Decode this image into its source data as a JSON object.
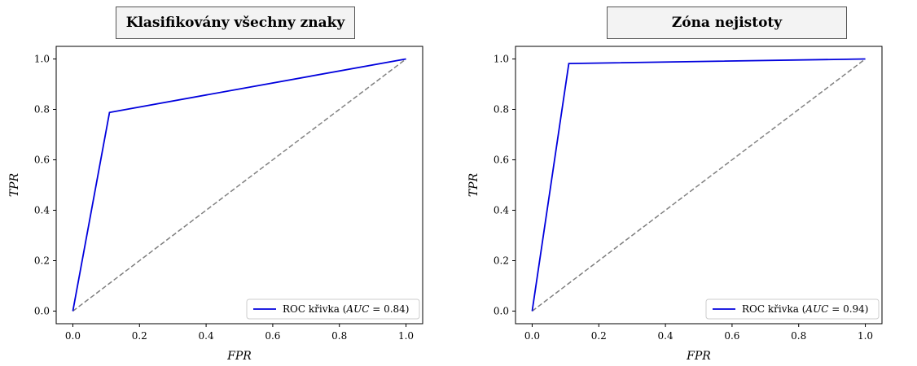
{
  "colors": {
    "roc": "#0000dd",
    "diagonal": "#808080",
    "axis": "#000000",
    "title_bg": "#f3f3f3"
  },
  "chart_data": [
    {
      "type": "line",
      "title": "Klasifikovány všechny znaky",
      "xlabel": "FPR",
      "ylabel": "TPR",
      "xlim": [
        -0.05,
        1.05
      ],
      "ylim": [
        -0.05,
        1.05
      ],
      "xticks": [
        "0.0",
        "0.2",
        "0.4",
        "0.6",
        "0.8",
        "1.0"
      ],
      "yticks": [
        "0.0",
        "0.2",
        "0.4",
        "0.6",
        "0.8",
        "1.0"
      ],
      "grid": false,
      "legend_position": "lower-right",
      "series": [
        {
          "name": "ROC křivka",
          "auc_label": "AUC",
          "auc": "0.84",
          "x": [
            0.0,
            0.11,
            1.0
          ],
          "y": [
            0.0,
            0.788,
            1.0
          ]
        }
      ],
      "diagonal": {
        "x": [
          0.0,
          1.0
        ],
        "y": [
          0.0,
          1.0
        ]
      }
    },
    {
      "type": "line",
      "title": "Zóna nejistoty",
      "xlabel": "FPR",
      "ylabel": "TPR",
      "xlim": [
        -0.05,
        1.05
      ],
      "ylim": [
        -0.05,
        1.05
      ],
      "xticks": [
        "0.0",
        "0.2",
        "0.4",
        "0.6",
        "0.8",
        "1.0"
      ],
      "yticks": [
        "0.0",
        "0.2",
        "0.4",
        "0.6",
        "0.8",
        "1.0"
      ],
      "grid": false,
      "legend_position": "lower-right",
      "series": [
        {
          "name": "ROC křivka",
          "auc_label": "AUC",
          "auc": "0.94",
          "x": [
            0.0,
            0.11,
            1.0
          ],
          "y": [
            0.0,
            0.982,
            1.0
          ]
        }
      ],
      "diagonal": {
        "x": [
          0.0,
          1.0
        ],
        "y": [
          0.0,
          1.0
        ]
      }
    }
  ]
}
